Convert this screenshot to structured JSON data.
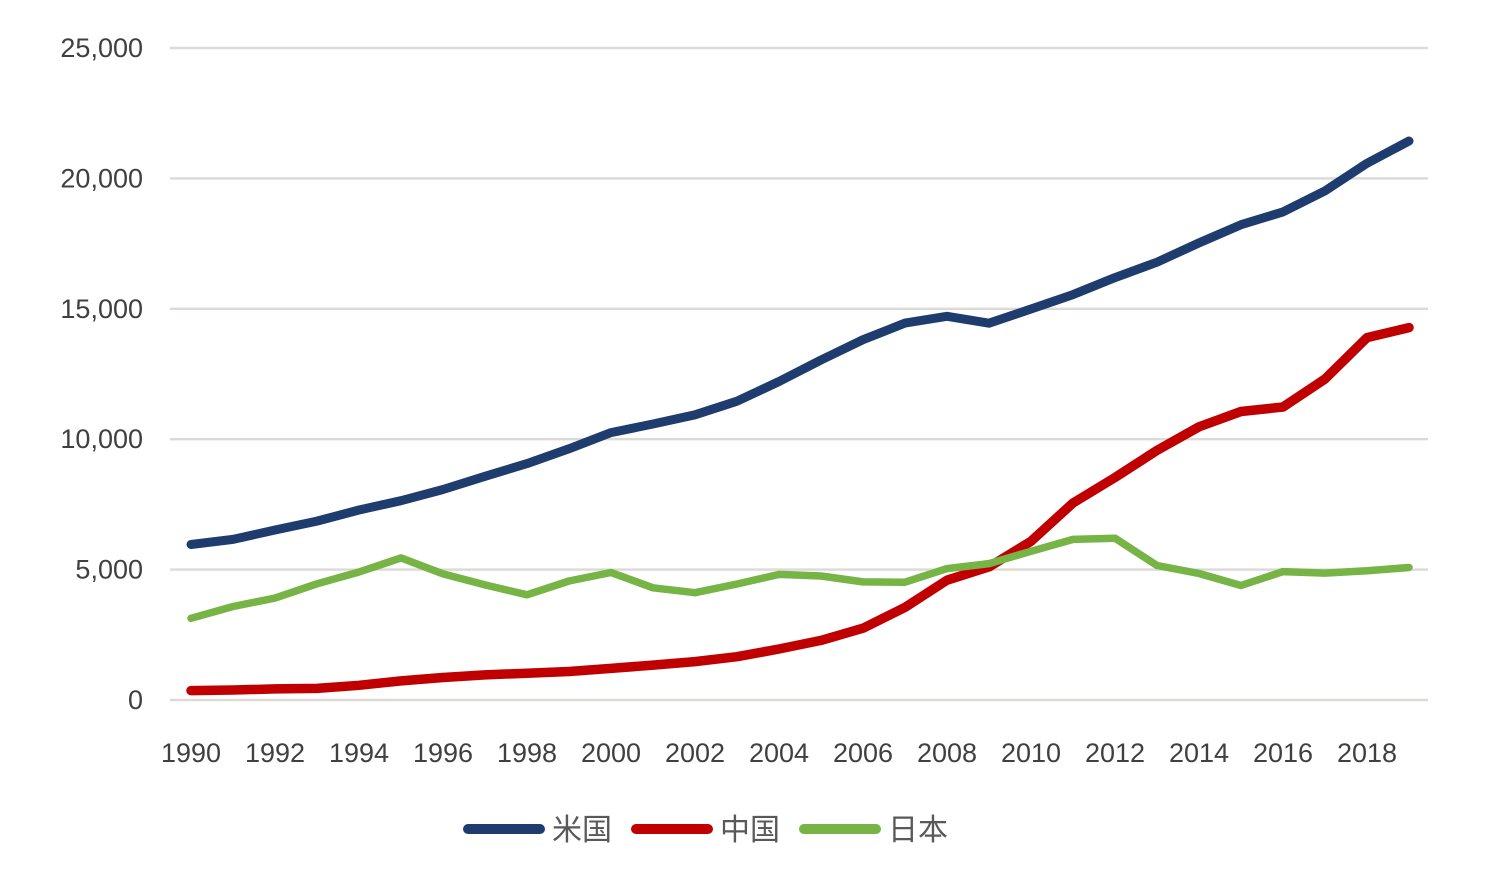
{
  "page": {
    "background_color": "#ffffff"
  },
  "chart_data": {
    "type": "line",
    "title": "",
    "xlabel": "",
    "ylabel": "",
    "x": [
      1990,
      1991,
      1992,
      1993,
      1994,
      1995,
      1996,
      1997,
      1998,
      1999,
      2000,
      2001,
      2002,
      2003,
      2004,
      2005,
      2006,
      2007,
      2008,
      2009,
      2010,
      2011,
      2012,
      2013,
      2014,
      2015,
      2016,
      2017,
      2018,
      2019
    ],
    "series": [
      {
        "name": "米国",
        "color": "#1f3c6f",
        "values": [
          5963,
          6158,
          6520,
          6859,
          7287,
          7640,
          8073,
          8578,
          9063,
          9631,
          10252,
          10582,
          10936,
          11458,
          12214,
          13037,
          13815,
          14452,
          14713,
          14449,
          14992,
          15543,
          16197,
          16785,
          17527,
          18225,
          18715,
          19519,
          20580,
          21433
        ]
      },
      {
        "name": "中国",
        "color": "#c00000",
        "values": [
          361,
          383,
          427,
          445,
          564,
          734,
          864,
          962,
          1029,
          1094,
          1211,
          1339,
          1471,
          1660,
          1955,
          2286,
          2752,
          3550,
          4594,
          5102,
          6087,
          7552,
          8532,
          9570,
          10476,
          11062,
          11233,
          12310,
          13895,
          14280
        ]
      },
      {
        "name": "日本",
        "color": "#76b445",
        "values": [
          3133,
          3584,
          3909,
          4454,
          4907,
          5449,
          4834,
          4414,
          4032,
          4562,
          4888,
          4304,
          4115,
          4446,
          4815,
          4755,
          4530,
          4515,
          5038,
          5231,
          5700,
          6157,
          6203,
          5156,
          4850,
          4389,
          4923,
          4867,
          4955,
          5082
        ]
      }
    ],
    "ylim": [
      0,
      25000
    ],
    "ytick_step": 5000,
    "ytick_labels": [
      "0",
      "5,000",
      "10,000",
      "15,000",
      "20,000",
      "25,000"
    ],
    "xtick_labels": [
      "1990",
      "1992",
      "1994",
      "1996",
      "1998",
      "2000",
      "2002",
      "2004",
      "2006",
      "2008",
      "2010",
      "2012",
      "2014",
      "2016",
      "2018"
    ],
    "grid": true,
    "legend_position": "bottom",
    "styles": {
      "gridline_color": "#dcd9d6",
      "axis_text_color": "#404040",
      "legend_text_color": "#595959"
    }
  }
}
